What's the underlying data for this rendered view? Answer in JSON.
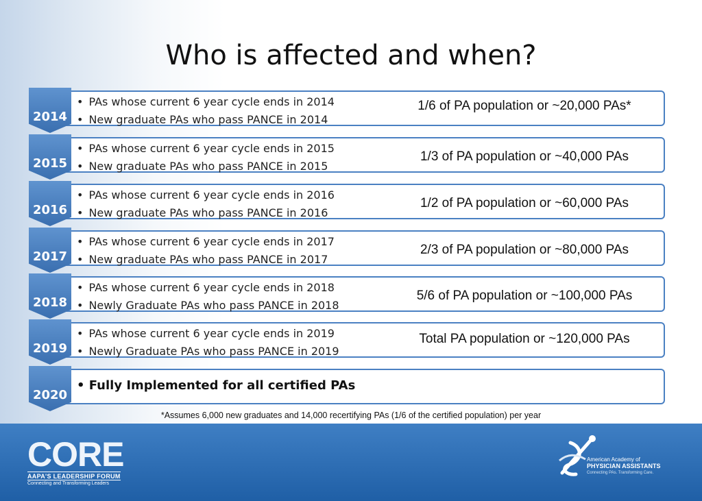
{
  "slide": {
    "title": "Who is affected and when?",
    "footnote": "*Assumes 6,000 new graduates and 14,000 recertifying PAs (1/6 of the certified population) per year"
  },
  "rows": [
    {
      "year": "2014",
      "bullets": [
        "PAs whose current 6 year cycle ends in 2014",
        "New graduate PAs who pass PANCE in 2014"
      ],
      "stat": "1/6 of PA population or ~20,000 PAs*"
    },
    {
      "year": "2015",
      "bullets": [
        "PAs whose current 6 year cycle ends in 2015",
        "New graduate PAs who pass PANCE in 2015"
      ],
      "stat": "1/3 of PA population or ~40,000 PAs"
    },
    {
      "year": "2016",
      "bullets": [
        "PAs whose current 6 year cycle ends in 2016",
        "New graduate PAs who pass PANCE in 2016"
      ],
      "stat": "1/2 of PA population or ~60,000 PAs"
    },
    {
      "year": "2017",
      "bullets": [
        "PAs whose current 6 year cycle ends in 2017",
        "New graduate PAs who pass PANCE in 2017"
      ],
      "stat": "2/3 of PA population or ~80,000 PAs"
    },
    {
      "year": "2018",
      "bullets": [
        "PAs whose current 6 year cycle ends in 2018",
        "Newly Graduate PAs who pass PANCE in 2018"
      ],
      "stat": "5/6 of PA population or ~100,000 PAs"
    },
    {
      "year": "2019",
      "bullets": [
        "PAs whose current 6 year cycle ends in 2019",
        "Newly Graduate PAs who pass PANCE in 2019"
      ],
      "stat": "Total PA population or ~120,000 PAs"
    },
    {
      "year": "2020",
      "bullets": [
        "Fully Implemented for all certified PAs"
      ],
      "stat": ""
    }
  ],
  "footer": {
    "core_word": "CORE",
    "core_sub1": "AAPA'S LEADERSHIP FORUM",
    "core_sub2": "Connecting and Transforming Leaders",
    "aapa_line1": "American Academy of",
    "aapa_line2": "PHYSICIAN ASSISTANTS",
    "aapa_line3": "Connecting PAs. Transforming Care."
  },
  "colors": {
    "accent": "#4a80c2",
    "chevron": "#3a6fb0",
    "footer": "#2b6bb2"
  },
  "icons": [
    "aapa-logo-icon"
  ]
}
